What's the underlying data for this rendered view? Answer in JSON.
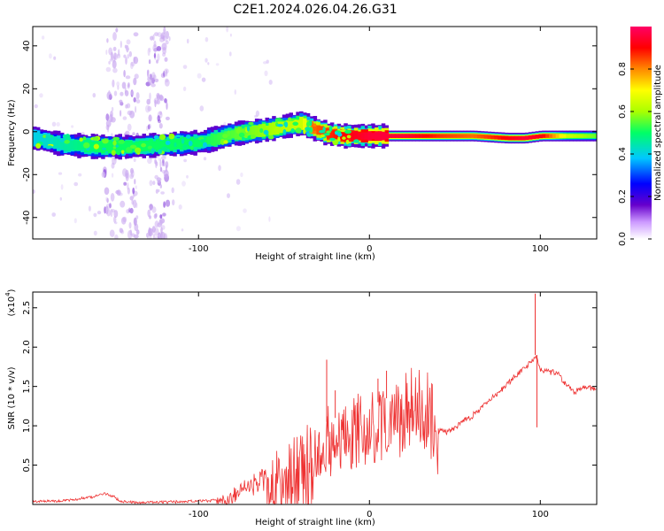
{
  "title": "C2E1.2024.026.04.26.G31",
  "chart_data": [
    {
      "type": "heatmap",
      "xlabel": "Height of straight line (km)",
      "ylabel": "Frequency (Hz)",
      "xlim": [
        -197,
        133
      ],
      "ylim": [
        -50,
        49
      ],
      "xticks": [
        -100,
        0,
        100
      ],
      "xtick_labels": [
        "-100",
        "0",
        "100"
      ],
      "yticks": [
        -40,
        -20,
        0,
        20,
        40
      ],
      "ytick_labels": [
        "-40",
        "-20",
        "0",
        "20",
        "40"
      ],
      "colorbar": {
        "label": "Normalized spectral amplitude",
        "range": [
          0,
          1
        ],
        "ticks": [
          0.0,
          0.2,
          0.4,
          0.6,
          0.8
        ],
        "tick_labels": [
          "0.0",
          "0.2",
          "0.4",
          "0.6",
          "0.8"
        ],
        "colormap": [
          "#ffffff",
          "#6600cc",
          "#0000ff",
          "#00c8ff",
          "#00ff66",
          "#aaff00",
          "#ffff00",
          "#ff8800",
          "#ff0000",
          "#ff0066"
        ]
      },
      "ridge": {
        "x": [
          -197,
          -180,
          -160,
          -140,
          -120,
          -100,
          -80,
          -60,
          -40,
          -35,
          -25,
          -15,
          0,
          20,
          40,
          60,
          80,
          90,
          100,
          115,
          133
        ],
        "y": [
          -3,
          -6,
          -7,
          -7,
          -6,
          -5,
          -1,
          1,
          4,
          2,
          -1,
          -2,
          -2,
          -2,
          -2,
          -2,
          -3,
          -3,
          -2,
          -2,
          -2
        ],
        "peak_amplitude": [
          0.35,
          0.4,
          0.45,
          0.45,
          0.45,
          0.45,
          0.5,
          0.55,
          0.6,
          0.8,
          0.85,
          0.9,
          0.95,
          0.95,
          0.85,
          0.8,
          0.9,
          0.95,
          0.9,
          0.6,
          0.5
        ]
      },
      "noise_bands_x": [
        [
          -155,
          -135
        ],
        [
          -130,
          -118
        ]
      ]
    },
    {
      "type": "line",
      "xlabel": "Height of straight line (km)",
      "ylabel": "SNR (10 * v/v)",
      "yscale_label": "(x10",
      "yscale_exponent": "4",
      "xlim": [
        -197,
        133
      ],
      "ylim": [
        0,
        2.7
      ],
      "xticks": [
        -100,
        0,
        100
      ],
      "xtick_labels": [
        "-100",
        "0",
        "100"
      ],
      "yticks": [
        0.5,
        1.0,
        1.5,
        2.0,
        2.5
      ],
      "ytick_labels": [
        "0.5",
        "1.0",
        "1.5",
        "2.0",
        "2.5"
      ],
      "color": "#ee3333",
      "series": [
        {
          "x": [
            -197,
            -180,
            -165,
            -155,
            -150,
            -145,
            -130,
            -110,
            -95,
            -85,
            -75,
            -65,
            -55,
            -45,
            -35,
            -28,
            -25,
            -20,
            -12,
            -5,
            0,
            5,
            10,
            15,
            20,
            25,
            30,
            35,
            37,
            40,
            45,
            50,
            55,
            60,
            65,
            70,
            75,
            80,
            85,
            90,
            95,
            97,
            98,
            100,
            105,
            110,
            115,
            120,
            125,
            133
          ],
          "y": [
            0.05,
            0.06,
            0.1,
            0.15,
            0.12,
            0.05,
            0.04,
            0.05,
            0.06,
            0.1,
            0.3,
            0.4,
            0.55,
            0.6,
            0.8,
            0.95,
            1.05,
            1.1,
            1.15,
            1.25,
            1.3,
            1.3,
            1.35,
            1.4,
            1.45,
            1.5,
            1.5,
            1.48,
            1.3,
            0.97,
            0.95,
            1.0,
            1.1,
            1.15,
            1.25,
            1.35,
            1.45,
            1.55,
            1.65,
            1.75,
            1.85,
            1.9,
            1.9,
            1.75,
            1.72,
            1.7,
            1.55,
            1.45,
            1.52,
            1.5
          ]
        }
      ],
      "spikes": [
        {
          "x": -25,
          "y": 1.84
        },
        {
          "x": -20,
          "y": 1.45
        },
        {
          "x": 5,
          "y": 1.6
        },
        {
          "x": 10,
          "y": 1.7
        },
        {
          "x": 97,
          "y": 2.68
        },
        {
          "x": 98,
          "y": 0.98
        }
      ]
    }
  ]
}
